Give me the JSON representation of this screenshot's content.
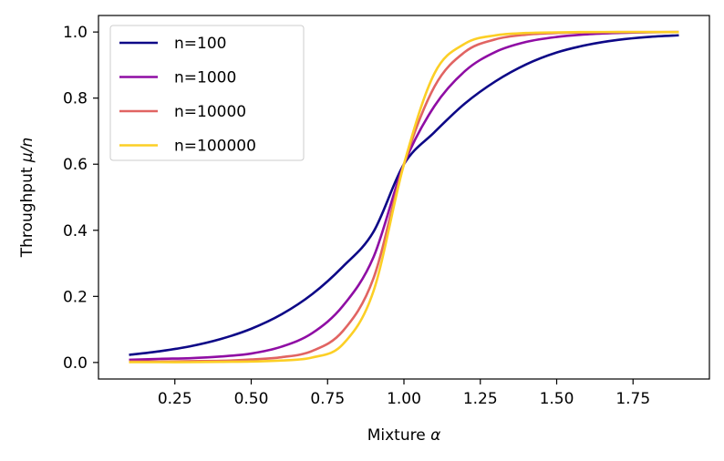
{
  "chart_data": {
    "type": "line",
    "xlabel": "Mixture",
    "xlabel_symbol": "α",
    "ylabel": "Throughput",
    "ylabel_symbol": "μ/n",
    "xlim": [
      0.0,
      2.0
    ],
    "ylim": [
      -0.05,
      1.05
    ],
    "xticks": [
      0.25,
      0.5,
      0.75,
      1.0,
      1.25,
      1.5,
      1.75
    ],
    "xtick_labels": [
      "0.25",
      "0.50",
      "0.75",
      "1.00",
      "1.25",
      "1.50",
      "1.75"
    ],
    "yticks": [
      0.0,
      0.2,
      0.4,
      0.6,
      0.8,
      1.0
    ],
    "ytick_labels": [
      "0.0",
      "0.2",
      "0.4",
      "0.6",
      "0.8",
      "1.0"
    ],
    "legend_position": "top-left",
    "x": [
      0.1,
      0.2,
      0.3,
      0.4,
      0.5,
      0.6,
      0.7,
      0.8,
      0.9,
      1.0,
      1.1,
      1.2,
      1.3,
      1.4,
      1.5,
      1.6,
      1.7,
      1.8,
      1.9
    ],
    "series": [
      {
        "name": "n=100",
        "color": "#0d0887",
        "values": [
          0.023,
          0.034,
          0.049,
          0.071,
          0.102,
          0.146,
          0.207,
          0.29,
          0.395,
          0.6,
          0.697,
          0.784,
          0.851,
          0.902,
          0.938,
          0.961,
          0.976,
          0.985,
          0.99
        ]
      },
      {
        "name": "n=1000",
        "color": "#8f0da4",
        "values": [
          0.008,
          0.011,
          0.013,
          0.018,
          0.027,
          0.048,
          0.089,
          0.171,
          0.318,
          0.6,
          0.776,
          0.882,
          0.94,
          0.97,
          0.985,
          0.993,
          0.997,
          0.999,
          1.0
        ]
      },
      {
        "name": "n=10000",
        "color": "#e16462",
        "values": [
          0.003,
          0.003,
          0.004,
          0.005,
          0.009,
          0.016,
          0.035,
          0.095,
          0.254,
          0.6,
          0.835,
          0.94,
          0.978,
          0.992,
          0.997,
          0.999,
          1.0,
          1.0,
          1.0
        ]
      },
      {
        "name": "n=100000",
        "color": "#fccf25",
        "values": [
          0.001,
          0.001,
          0.001,
          0.002,
          0.003,
          0.006,
          0.015,
          0.055,
          0.215,
          0.6,
          0.875,
          0.965,
          0.99,
          0.997,
          0.999,
          1.0,
          1.0,
          1.0,
          1.0
        ]
      }
    ]
  }
}
